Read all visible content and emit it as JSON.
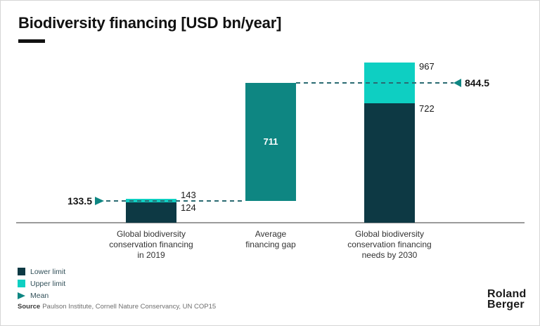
{
  "header": {
    "title": "Biodiversity financing [USD bn/year]"
  },
  "chart_data": {
    "type": "bar",
    "title": "Biodiversity financing [USD bn/year]",
    "unit": "USD bn/year",
    "ylim": [
      0,
      1000
    ],
    "grid": false,
    "legend_position": "bottom-left",
    "categories": [
      "Global biodiversity\nconservation financing\nin 2019",
      "Average\nfinancing gap",
      "Global biodiversity\nconservation financing\nneeds by 2030"
    ],
    "bars": [
      {
        "category": "Global biodiversity conservation financing in 2019",
        "lower_limit": 124,
        "upper_limit": 143,
        "mean": 133.5,
        "mean_label": "133.5",
        "mean_label_side": "left"
      },
      {
        "category": "Average financing gap",
        "gap_value": 711,
        "gap_label": "711",
        "from": 133.5,
        "to": 844.5
      },
      {
        "category": "Global biodiversity conservation financing needs by 2030",
        "lower_limit": 722,
        "upper_limit": 967,
        "mean": 844.5,
        "mean_label": "844.5",
        "mean_label_side": "right"
      }
    ],
    "legend": [
      {
        "label": "Lower limit",
        "swatch": "square",
        "color": "#0d3944"
      },
      {
        "label": "Upper limit",
        "swatch": "square",
        "color": "#0ecfc2"
      },
      {
        "label": "Mean",
        "swatch": "triangle",
        "color": "#0e8682"
      }
    ],
    "colors": {
      "lower_limit": "#0d3944",
      "upper_limit": "#0ecfc2",
      "financing_gap": "#0e8682",
      "mean_marker": "#0e8682",
      "dashed_line": "#2a6a72",
      "axis": "#9b9b9b"
    }
  },
  "source": {
    "label": "Source",
    "text": "Paulson Institute, Cornell Nature Conservancy, UN COP15"
  },
  "logo": {
    "line1": "Roland",
    "line2": "Berger"
  }
}
